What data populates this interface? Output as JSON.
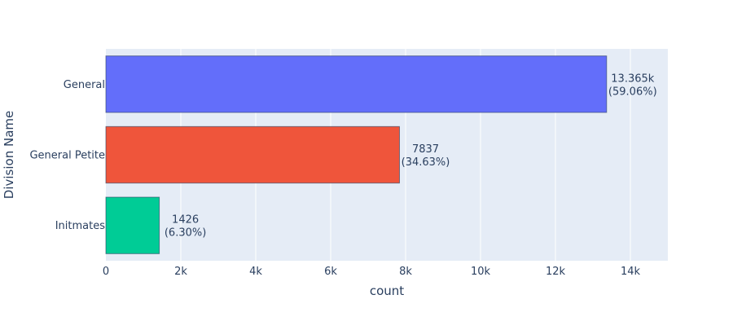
{
  "chart_data": {
    "type": "bar",
    "orientation": "horizontal",
    "xlabel": "count",
    "ylabel": "Division Name",
    "xlim": [
      0,
      15000
    ],
    "x_ticks": [
      0,
      2000,
      4000,
      6000,
      8000,
      10000,
      12000,
      14000
    ],
    "x_tick_labels": [
      "0",
      "2k",
      "4k",
      "6k",
      "8k",
      "10k",
      "12k",
      "14k"
    ],
    "grid": true,
    "categories": [
      "General",
      "General Petite",
      "Initmates"
    ],
    "values": [
      13365,
      7837,
      1426
    ],
    "value_labels": [
      "13.365k",
      "7837",
      "1426"
    ],
    "percent_labels": [
      "(59.06%)",
      "(34.63%)",
      "(6.30%)"
    ],
    "colors": [
      "#636efa",
      "#ef553b",
      "#00cc96"
    ],
    "plot_background": "#e5ecf6"
  }
}
